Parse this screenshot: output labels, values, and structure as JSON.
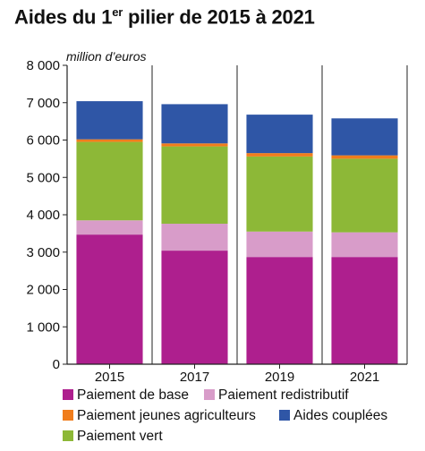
{
  "chart_data": {
    "type": "bar",
    "stacked": true,
    "title_main": "Aides du 1",
    "title_sup": "er",
    "title_rest": " pilier de 2015 à 2021",
    "ylabel": "million d’euros",
    "categories": [
      "2015",
      "2017",
      "2019",
      "2021"
    ],
    "ylim": [
      0,
      8000
    ],
    "yticks": [
      0,
      1000,
      2000,
      3000,
      4000,
      5000,
      6000,
      7000,
      8000
    ],
    "ytick_labels": [
      "0",
      "1 000",
      "2 000",
      "3 000",
      "4 000",
      "5 000",
      "6 000",
      "7 000",
      "8 000"
    ],
    "grid": "vertical separators between categories",
    "legend_position": "bottom",
    "series": [
      {
        "name": "Paiement de base",
        "color": "#ae1f8e",
        "values": [
          3470,
          3040,
          2870,
          2870
        ]
      },
      {
        "name": "Paiement redistributif",
        "color": "#d89cc9",
        "values": [
          380,
          720,
          680,
          660
        ]
      },
      {
        "name": "Paiement vert",
        "color": "#8db837",
        "values": [
          2100,
          2070,
          2010,
          1970
        ]
      },
      {
        "name": "Paiement jeunes agriculteurs",
        "color": "#f07d1c",
        "values": [
          70,
          80,
          90,
          90
        ]
      },
      {
        "name": "Aides couplées",
        "color": "#2f56a6",
        "values": [
          1020,
          1050,
          1030,
          990
        ]
      }
    ]
  },
  "legend": [
    {
      "label": "Paiement de base",
      "color": "#ae1f8e"
    },
    {
      "label": "Paiement redistributif",
      "color": "#d89cc9"
    },
    {
      "label": "Paiement jeunes agriculteurs",
      "color": "#f07d1c"
    },
    {
      "label": "Aides couplées",
      "color": "#2f56a6"
    },
    {
      "label": "Paiement vert",
      "color": "#8db837"
    }
  ]
}
